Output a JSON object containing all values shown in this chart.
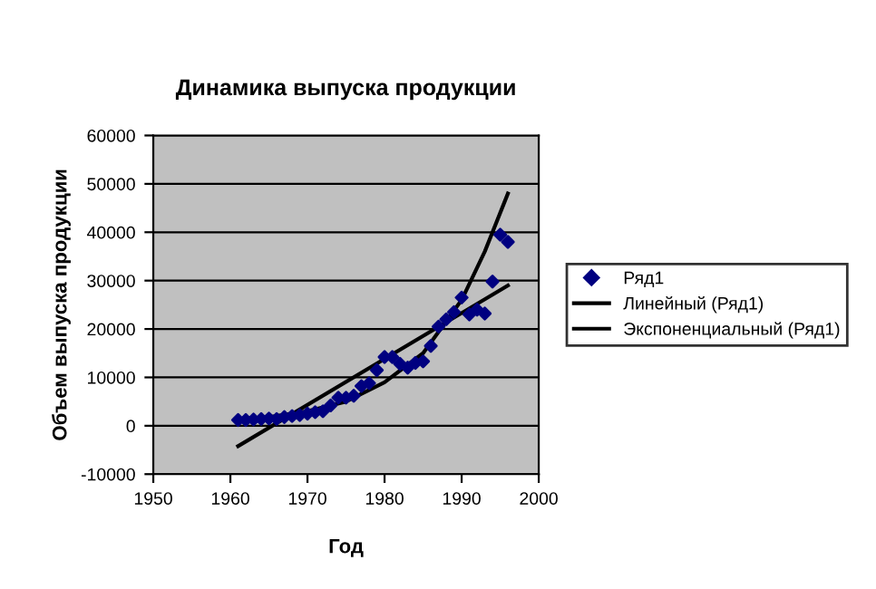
{
  "chart_data": {
    "type": "scatter",
    "title": "Динамика выпуска продукции",
    "xlabel": "Год",
    "ylabel": "Объем выпуска продукции",
    "xlim": [
      1950,
      2000
    ],
    "xticks": [
      1950,
      1960,
      1970,
      1980,
      1990,
      2000
    ],
    "ylim": [
      -10000,
      60000
    ],
    "yticks": [
      -10000,
      0,
      10000,
      20000,
      30000,
      40000,
      50000,
      60000
    ],
    "grid": "y",
    "legend": "right",
    "series": [
      {
        "name": "Ряд1",
        "marker": "diamond",
        "color": "#000080",
        "x": [
          1961,
          1962,
          1963,
          1964,
          1965,
          1966,
          1967,
          1968,
          1969,
          1970,
          1971,
          1972,
          1973,
          1974,
          1975,
          1976,
          1977,
          1978,
          1979,
          1980,
          1981,
          1982,
          1983,
          1984,
          1985,
          1986,
          1987,
          1988,
          1989,
          1990,
          1991,
          1992,
          1993,
          1994,
          1995,
          1996
        ],
        "values": [
          1200,
          1200,
          1300,
          1400,
          1500,
          1400,
          1800,
          2000,
          2200,
          2500,
          2800,
          3000,
          4200,
          5800,
          5800,
          6200,
          8200,
          8800,
          11500,
          14200,
          14200,
          12800,
          12000,
          13000,
          13300,
          16500,
          20500,
          22000,
          23500,
          26500,
          23000,
          24000,
          23200,
          29800,
          39500,
          38000
        ]
      },
      {
        "name": "Линейный (Ряд1)",
        "type": "line",
        "color": "#000000",
        "x": [
          1961,
          1996
        ],
        "values": [
          -4200,
          29000
        ]
      },
      {
        "name": "Экспоненциальный (Ряд1)",
        "type": "line",
        "color": "#000000",
        "x": [
          1961,
          1965,
          1970,
          1975,
          1980,
          1985,
          1990,
          1993,
          1996
        ],
        "values": [
          1200,
          1800,
          3000,
          5000,
          9000,
          15000,
          26000,
          36000,
          48000
        ]
      }
    ]
  }
}
